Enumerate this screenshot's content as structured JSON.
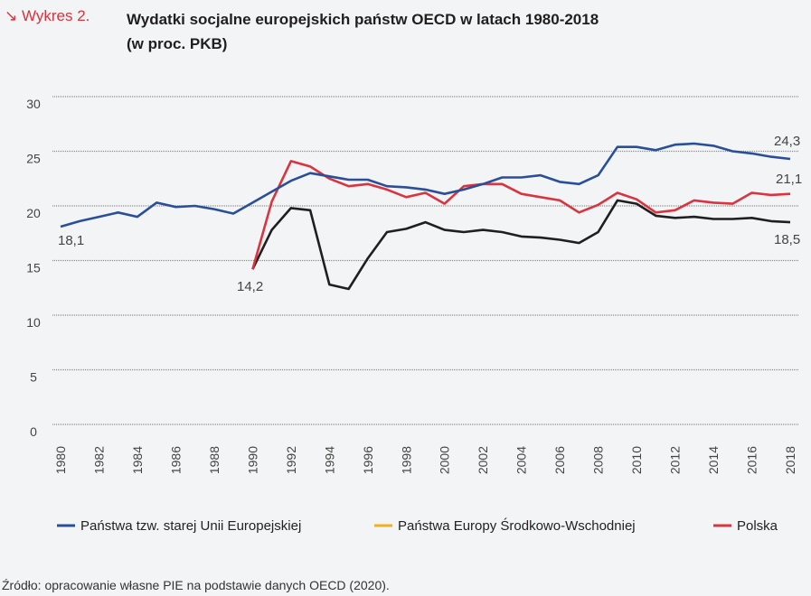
{
  "header": {
    "tag": "↘ Wykres 2.",
    "title_line1": "Wydatki socjalne europejskich państw OECD w latach 1980-2018",
    "title_line2": "(w proc. PKB)"
  },
  "source": "Źródło: opracowanie własne PIE na podstawie danych OECD (2020).",
  "chart_data": {
    "type": "line",
    "title": "Wydatki socjalne europejskich państw OECD w latach 1980-2018 (w proc. PKB)",
    "ylim": [
      0,
      30
    ],
    "yticks": [
      "0",
      "5",
      "10",
      "15",
      "20",
      "25",
      "30"
    ],
    "xticks": [
      "1980",
      "1982",
      "1984",
      "1986",
      "1988",
      "1990",
      "1992",
      "1994",
      "1996",
      "1998",
      "2000",
      "2002",
      "2004",
      "2006",
      "2008",
      "2010",
      "2012",
      "2014",
      "2016",
      "2018"
    ],
    "grid": true,
    "legend": "bottom",
    "x": [
      1980,
      1981,
      1982,
      1983,
      1984,
      1985,
      1986,
      1987,
      1988,
      1989,
      1990,
      1991,
      1992,
      1993,
      1994,
      1995,
      1996,
      1997,
      1998,
      1999,
      2000,
      2001,
      2002,
      2003,
      2004,
      2005,
      2006,
      2007,
      2008,
      2009,
      2010,
      2011,
      2012,
      2013,
      2014,
      2015,
      2016,
      2017,
      2018
    ],
    "series": [
      {
        "name": "Państwa tzw. starej Unii Europejskiej",
        "color": "#2a4f9a",
        "legend_color": "#2a4f9a",
        "values": [
          18.1,
          18.6,
          19.0,
          19.4,
          19.0,
          20.3,
          19.9,
          20.0,
          19.7,
          19.3,
          20.3,
          21.3,
          22.3,
          23.0,
          22.7,
          22.4,
          22.4,
          21.8,
          21.7,
          21.5,
          21.1,
          21.5,
          22.0,
          22.6,
          22.6,
          22.8,
          22.2,
          22.0,
          22.8,
          25.4,
          25.4,
          25.1,
          25.6,
          25.7,
          25.5,
          25.0,
          24.8,
          24.5,
          24.3
        ]
      },
      {
        "name": "Państwa Europy Środkowo-Wschodniej",
        "color": "#1f1f1f",
        "legend_color": "#f2b01e",
        "values": [
          null,
          null,
          null,
          null,
          null,
          null,
          null,
          null,
          null,
          null,
          14.2,
          17.8,
          19.8,
          19.6,
          12.8,
          12.4,
          15.2,
          17.6,
          17.9,
          18.5,
          17.8,
          17.6,
          17.8,
          17.6,
          17.2,
          17.1,
          16.9,
          16.6,
          17.6,
          20.5,
          20.2,
          19.1,
          18.9,
          19.0,
          18.8,
          18.8,
          18.9,
          18.6,
          18.5
        ]
      },
      {
        "name": "Polska",
        "color": "#d9343f",
        "legend_color": "#d9343f",
        "values": [
          null,
          null,
          null,
          null,
          null,
          null,
          null,
          null,
          null,
          null,
          14.2,
          20.4,
          24.1,
          23.6,
          22.5,
          21.8,
          22.0,
          21.5,
          20.8,
          21.2,
          20.2,
          21.8,
          22.0,
          22.0,
          21.1,
          20.8,
          20.5,
          19.4,
          20.1,
          21.2,
          20.6,
          19.4,
          19.6,
          20.5,
          20.3,
          20.2,
          21.2,
          21.0,
          21.1
        ]
      }
    ],
    "annotations": [
      "18,1",
      "14,2",
      "24,3",
      "21,1",
      "18,5"
    ]
  }
}
